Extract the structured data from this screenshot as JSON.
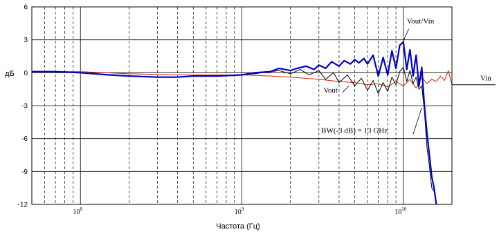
{
  "chart_data": {
    "type": "line",
    "title": "",
    "xlabel": "Частота (Гц)",
    "ylabel": "дБ",
    "x_scale": "log",
    "xlim": [
      50000000,
      20000000000
    ],
    "ylim": [
      -12,
      6
    ],
    "y_ticks": [
      6,
      3,
      0,
      -3,
      -6,
      -9,
      -12
    ],
    "x_ticks": [
      {
        "value": 100000000,
        "mantissa": "10",
        "exponent": "8"
      },
      {
        "value": 1000000000,
        "mantissa": "10",
        "exponent": "9"
      },
      {
        "value": 10000000000,
        "mantissa": "10",
        "exponent": "10"
      }
    ],
    "grid": true,
    "legend": "none",
    "series": [
      {
        "name": "Vout/Vin",
        "color": "#0000cc",
        "x": [
          50000000,
          70000000,
          100000000,
          150000000,
          200000000,
          300000000,
          400000000,
          500000000,
          700000000,
          1000000000,
          1200000000,
          1500000000,
          1700000000,
          2000000000,
          2200000000,
          2500000000,
          2800000000,
          3000000000,
          3300000000,
          3600000000,
          4000000000,
          4300000000,
          4700000000,
          5000000000,
          5300000000,
          5700000000,
          6000000000,
          6500000000,
          7000000000,
          7500000000,
          8000000000,
          8500000000,
          9000000000,
          9500000000,
          10000000000,
          10500000000,
          11000000000,
          11500000000,
          12000000000,
          12500000000,
          13000000000,
          13500000000,
          14000000000,
          14500000000,
          15000000000,
          15500000000,
          16000000000
        ],
        "y": [
          0.1,
          0.1,
          0.0,
          -0.2,
          -0.3,
          -0.4,
          -0.4,
          -0.3,
          -0.3,
          -0.2,
          0.0,
          0.1,
          0.4,
          0.2,
          0.4,
          0.6,
          0.3,
          0.7,
          0.4,
          1.0,
          0.6,
          1.1,
          0.8,
          1.2,
          0.9,
          1.3,
          0.8,
          1.6,
          -0.3,
          1.4,
          -0.2,
          2.0,
          0.4,
          2.5,
          2.8,
          0.3,
          2.1,
          -0.3,
          1.6,
          -1.2,
          0.5,
          -3.0,
          -5.5,
          -7.5,
          -9.5,
          -10.5,
          -12.0
        ]
      },
      {
        "name": "Vout",
        "color": "#000000",
        "x": [
          50000000,
          70000000,
          100000000,
          150000000,
          200000000,
          300000000,
          400000000,
          500000000,
          700000000,
          1000000000,
          1200000000,
          1500000000,
          1700000000,
          2000000000,
          2300000000,
          2600000000,
          3000000000,
          3300000000,
          3700000000,
          4000000000,
          4500000000,
          5000000000,
          5500000000,
          6000000000,
          6500000000,
          7000000000,
          7500000000,
          8000000000,
          8500000000,
          9000000000,
          9500000000,
          10000000000,
          10500000000,
          11000000000,
          11500000000,
          12000000000,
          12500000000,
          13000000000,
          13500000000,
          14000000000,
          14500000000,
          15000000000,
          15500000000,
          16000000000
        ],
        "y": [
          0.1,
          0.1,
          0.0,
          -0.2,
          -0.3,
          -0.4,
          -0.4,
          -0.3,
          -0.3,
          -0.2,
          -0.1,
          0.1,
          0.2,
          -0.1,
          0.3,
          -0.2,
          0.2,
          -0.6,
          0.0,
          -0.9,
          -0.2,
          -1.2,
          -0.5,
          -1.6,
          -0.7,
          -1.9,
          -0.9,
          -1.7,
          -0.4,
          -1.1,
          0.1,
          0.5,
          -0.8,
          0.2,
          -1.0,
          -0.4,
          -1.5,
          -1.2,
          -3.5,
          -6.8,
          -8.5,
          -10.5,
          -10.8,
          -12.0
        ]
      },
      {
        "name": "Vin",
        "color": "#cc2200",
        "x": [
          50000000,
          100000000,
          200000000,
          400000000,
          700000000,
          1000000000,
          1500000000,
          2000000000,
          3000000000,
          4000000000,
          5000000000,
          6000000000,
          7000000000,
          8000000000,
          9000000000,
          10000000000,
          11000000000,
          12000000000,
          13000000000,
          14000000000,
          15000000000,
          16000000000,
          17000000000,
          18000000000,
          19000000000,
          20000000000
        ],
        "y": [
          0.1,
          0.1,
          -0.1,
          -0.2,
          -0.2,
          -0.2,
          -0.3,
          -0.4,
          -0.6,
          -0.8,
          -0.9,
          -1.1,
          -1.0,
          -1.3,
          -0.8,
          -1.2,
          -0.6,
          -1.4,
          -0.4,
          -1.0,
          -0.6,
          -0.8,
          -0.3,
          -0.7,
          0.2,
          -1.1
        ]
      }
    ],
    "annotations": [
      {
        "text": "Vout/Vin",
        "x": 10500000000,
        "y": 4.5
      },
      {
        "text": "Vout",
        "x": 3200000000,
        "y": -1.8
      },
      {
        "text": "BW(-3 dB) = 13 GHz",
        "x": 3100000000,
        "y": -5.5
      },
      {
        "text": "Vin",
        "x": 40000000000,
        "y": -0.7
      }
    ],
    "vin_extension": {
      "x_start": 20000000000,
      "x_end": 45000000000,
      "y": -1.1
    }
  }
}
